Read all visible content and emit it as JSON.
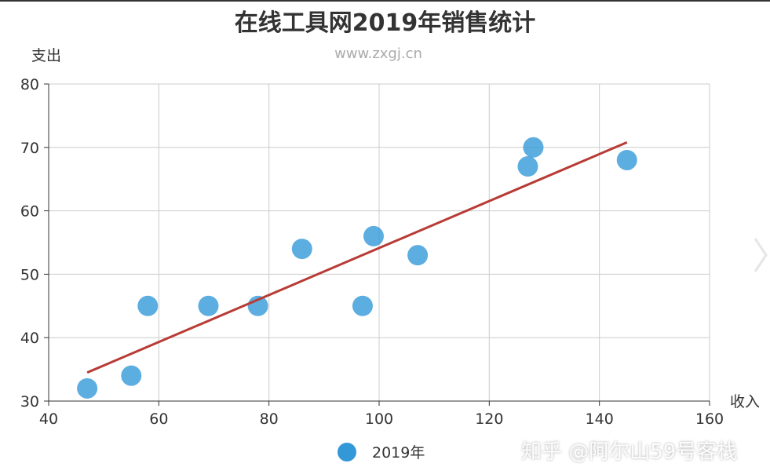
{
  "chart_data": {
    "type": "scatter",
    "title": "在线工具网2019年销售统计",
    "subtitle": "www.zxgj.cn",
    "xlabel": "收入",
    "ylabel": "支出",
    "xlim": [
      40,
      160
    ],
    "ylim": [
      30,
      80
    ],
    "xticks": [
      40,
      60,
      80,
      100,
      120,
      140,
      160
    ],
    "yticks": [
      30,
      40,
      50,
      60,
      70,
      80
    ],
    "grid": true,
    "legend_position": "bottom-center",
    "series": [
      {
        "name": "2019年",
        "color": "#3398d8",
        "points": [
          {
            "x": 47,
            "y": 32
          },
          {
            "x": 55,
            "y": 34
          },
          {
            "x": 58,
            "y": 45
          },
          {
            "x": 69,
            "y": 45
          },
          {
            "x": 78,
            "y": 45
          },
          {
            "x": 86,
            "y": 54
          },
          {
            "x": 97,
            "y": 45
          },
          {
            "x": 99,
            "y": 56
          },
          {
            "x": 107,
            "y": 53
          },
          {
            "x": 127,
            "y": 67
          },
          {
            "x": 128,
            "y": 70
          },
          {
            "x": 145,
            "y": 68
          }
        ]
      }
    ],
    "trendline": {
      "color": "#b83b35",
      "start": {
        "x": 47,
        "y": 34.5
      },
      "end": {
        "x": 145,
        "y": 70.8
      }
    }
  },
  "watermark": "知乎 @阿尔山59号客栈"
}
